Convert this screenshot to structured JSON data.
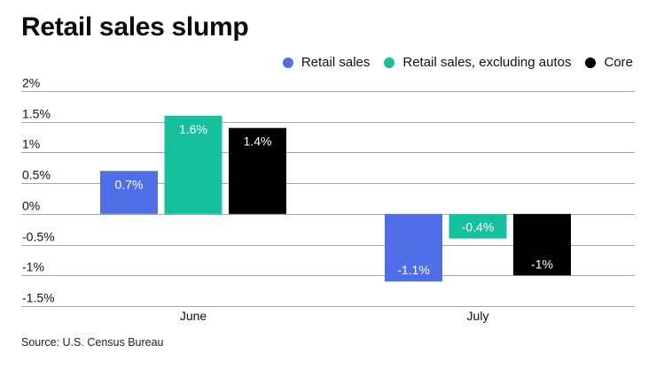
{
  "chart_data": {
    "type": "bar",
    "title": "Retail sales slump",
    "xlabel": "",
    "ylabel": "",
    "categories": [
      "June",
      "July"
    ],
    "series": [
      {
        "name": "Retail sales",
        "color": "#4f6ee8",
        "values": [
          0.7,
          -1.1
        ],
        "labels": [
          "0.7%",
          "-1.1%"
        ]
      },
      {
        "name": "Retail sales, excluding autos",
        "color": "#16bf9d",
        "values": [
          1.6,
          -0.4
        ],
        "labels": [
          "1.6%",
          "-0.4%"
        ]
      },
      {
        "name": "Core",
        "color": "#000000",
        "values": [
          1.4,
          -1.0
        ],
        "labels": [
          "1.4%",
          "-1%"
        ]
      }
    ],
    "ylim": [
      -1.5,
      2
    ],
    "yticks": [
      2,
      1.5,
      1,
      0.5,
      0,
      -0.5,
      -1,
      -1.5
    ],
    "ytick_labels": [
      "2%",
      "1.5%",
      "1%",
      "0.5%",
      "0%",
      "-0.5%",
      "-1%",
      "-1.5%"
    ],
    "grid": true,
    "legend_position": "top-right",
    "source": "Source: U.S. Census Bureau"
  }
}
